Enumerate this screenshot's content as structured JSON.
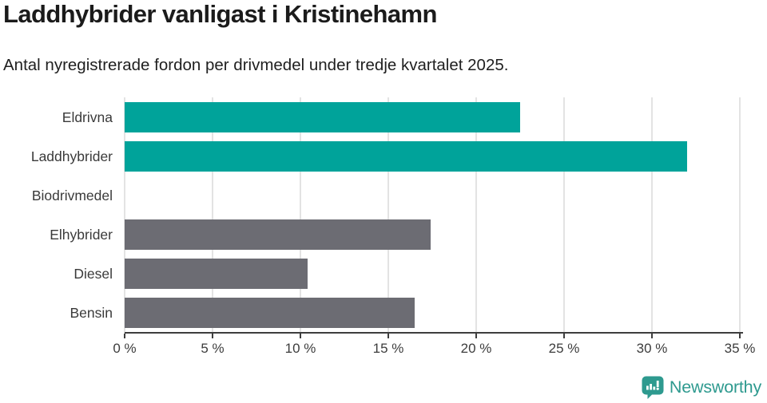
{
  "header": {
    "title": "Laddhybrider vanligast i Kristinehamn",
    "subtitle": "Antal nyregistrerade fordon per drivmedel under tredje kvartalet 2025."
  },
  "chart_data": {
    "type": "bar",
    "orientation": "horizontal",
    "title": "Laddhybrider vanligast i Kristinehamn",
    "subtitle": "Antal nyregistrerade fordon per drivmedel under tredje kvartalet 2025.",
    "categories": [
      "Eldrivna",
      "Laddhybrider",
      "Biodrivmedel",
      "Elhybrider",
      "Diesel",
      "Bensin"
    ],
    "values": [
      22.5,
      32.0,
      0,
      17.4,
      10.4,
      16.5
    ],
    "unit": "%",
    "xlim": [
      0,
      35
    ],
    "xtick_values": [
      0,
      5,
      10,
      15,
      20,
      25,
      30,
      35
    ],
    "xtick_labels": [
      "0 %",
      "5 %",
      "10 %",
      "15 %",
      "20 %",
      "25 %",
      "30 %",
      "35 %"
    ],
    "bar_colors": [
      "#00a39a",
      "#00a39a",
      "#6c6c73",
      "#6c6c73",
      "#6c6c73",
      "#6c6c73"
    ],
    "grid": "vertical",
    "legend": "none"
  },
  "colors": {
    "teal": "#00a39a",
    "gray": "#6c6c73",
    "gridline": "#e3e3e3",
    "axis": "#3e3e3e",
    "brand_teal": "#2e9a8f"
  },
  "footer": {
    "brand": "Newsworthy",
    "logo_icon": "newsworthy-speech-bubble-chart-icon"
  }
}
